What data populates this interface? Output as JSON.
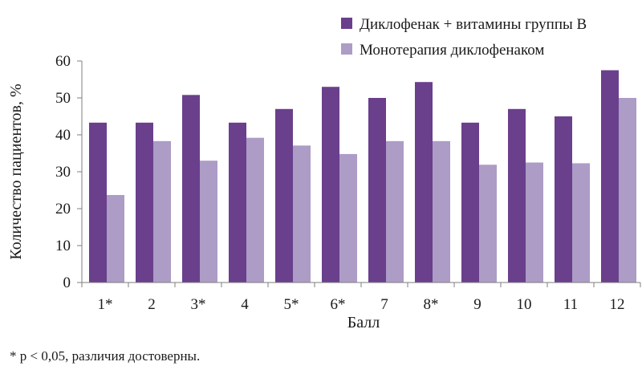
{
  "chart_data": {
    "type": "bar",
    "categories": [
      "1*",
      "2",
      "3*",
      "4",
      "5*",
      "6*",
      "7",
      "8*",
      "9",
      "10",
      "11",
      "12"
    ],
    "series": [
      {
        "name": "Диклофенак + витамины группы В",
        "color": "#6a3f8c",
        "values": [
          43.3,
          43.3,
          50.8,
          43.3,
          47.0,
          53.0,
          50.0,
          54.3,
          43.3,
          47.0,
          45.0,
          57.5
        ]
      },
      {
        "name": "Монотерапия диклофенаком",
        "color": "#ac9cc6",
        "values": [
          23.7,
          38.3,
          33.0,
          39.2,
          37.1,
          34.8,
          38.3,
          38.3,
          31.9,
          32.5,
          32.3,
          50.0
        ]
      }
    ],
    "xlabel": "Балл",
    "ylabel": "Количество пациентов, %",
    "ylim": [
      0,
      60
    ],
    "yticks": [
      0,
      10,
      20,
      30,
      40,
      50,
      60
    ],
    "grid": false,
    "legend_position": "top-right"
  },
  "footnote": "* p < 0,05, различия достоверны."
}
